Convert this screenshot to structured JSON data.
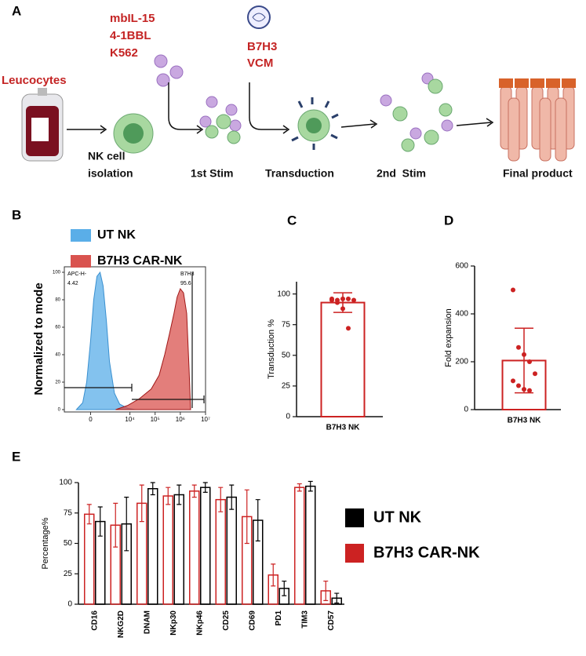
{
  "panels": [
    "A",
    "B",
    "C",
    "D",
    "E"
  ],
  "diagram": {
    "stimulus_1": [
      "mbIL-15",
      "4-1BBL",
      "K562"
    ],
    "stimulus_2": [
      "B7H3",
      "VCM"
    ],
    "source": "Leucocytes",
    "steps": [
      "NK cell",
      "isolation",
      "1st Stim",
      "Transduction",
      "2nd  Stim",
      "Final product"
    ]
  },
  "chart_data": [
    {
      "type": "area",
      "ylabel": "Normalized to mode",
      "xscale": "biexponential",
      "series": [
        {
          "name": "UT NK",
          "color": "#5aaee8",
          "x": [
            -930,
            -430,
            -200,
            0,
            160,
            340,
            540,
            780,
            1100,
            1500,
            2400,
            3900,
            8100,
            16600
          ],
          "values": [
            0,
            5,
            20,
            50,
            80,
            97,
            100,
            90,
            65,
            35,
            12,
            4,
            1,
            0
          ]
        },
        {
          "name": "B7H3 CAR-NK",
          "color": "#d9534f",
          "x": [
            2700,
            8100,
            24000,
            70000,
            144000,
            240000,
            370000,
            560000,
            750000,
            1000000,
            1340000,
            1790000,
            2220000,
            2560000
          ],
          "values": [
            0,
            3,
            8,
            15,
            25,
            40,
            55,
            70,
            82,
            88,
            85,
            70,
            30,
            0
          ]
        }
      ],
      "xlim": [
        -3000,
        10000000
      ],
      "xticks": [
        0,
        {
          "value": 10000,
          "label": "10⁴"
        },
        {
          "value": 100000,
          "label": "10⁵"
        },
        {
          "value": 1000000,
          "label": "10⁶"
        },
        {
          "value": 10000000,
          "label": "10⁷"
        }
      ],
      "ylim": [
        0,
        100
      ],
      "yticks": [
        0,
        20,
        40,
        60,
        80,
        100
      ],
      "gates": [
        {
          "name": "APC-H-",
          "value": 4.42
        },
        {
          "name": "B7H3",
          "value": 95.6
        }
      ]
    },
    {
      "type": "bar_points",
      "ylabel": "Transduction %",
      "categories": [
        "B7H3 NK"
      ],
      "color": "#cc2222",
      "values": [
        93
      ],
      "errors": [
        8
      ],
      "points": [
        95,
        95,
        96,
        96,
        95,
        96,
        93,
        88,
        72
      ],
      "ylim": [
        0,
        110
      ],
      "yticks": [
        0,
        25,
        50,
        75,
        100
      ]
    },
    {
      "type": "bar_points",
      "ylabel": "Fold expansion",
      "categories": [
        "B7H3 NK"
      ],
      "color": "#cc2222",
      "values": [
        205
      ],
      "errors": [
        135
      ],
      "points": [
        500,
        260,
        230,
        200,
        150,
        120,
        100,
        85,
        80
      ],
      "ylim": [
        0,
        600
      ],
      "yticks": [
        0,
        200,
        400,
        600
      ]
    },
    {
      "type": "grouped_bar",
      "ylabel": "Percentage%",
      "categories": [
        "CD16",
        "NKG2D",
        "DNAM",
        "NKp30",
        "NKp46",
        "CD25",
        "CD69",
        "PD1",
        "TIM3",
        "CD57"
      ],
      "series": [
        {
          "name": "UT NK",
          "color": "#000000",
          "values": [
            68,
            66,
            95,
            90,
            96,
            88,
            69,
            13,
            97,
            5
          ],
          "errors": [
            12,
            22,
            5,
            8,
            4,
            10,
            17,
            6,
            4,
            4
          ]
        },
        {
          "name": "B7H3 CAR-NK",
          "color": "#cc2222",
          "values": [
            74,
            65,
            83,
            89,
            93,
            86,
            72,
            24,
            96,
            11
          ],
          "errors": [
            8,
            18,
            15,
            7,
            5,
            10,
            22,
            9,
            3,
            8
          ]
        }
      ],
      "ylim": [
        0,
        100
      ],
      "yticks": [
        0,
        25,
        50,
        75,
        100
      ]
    }
  ]
}
